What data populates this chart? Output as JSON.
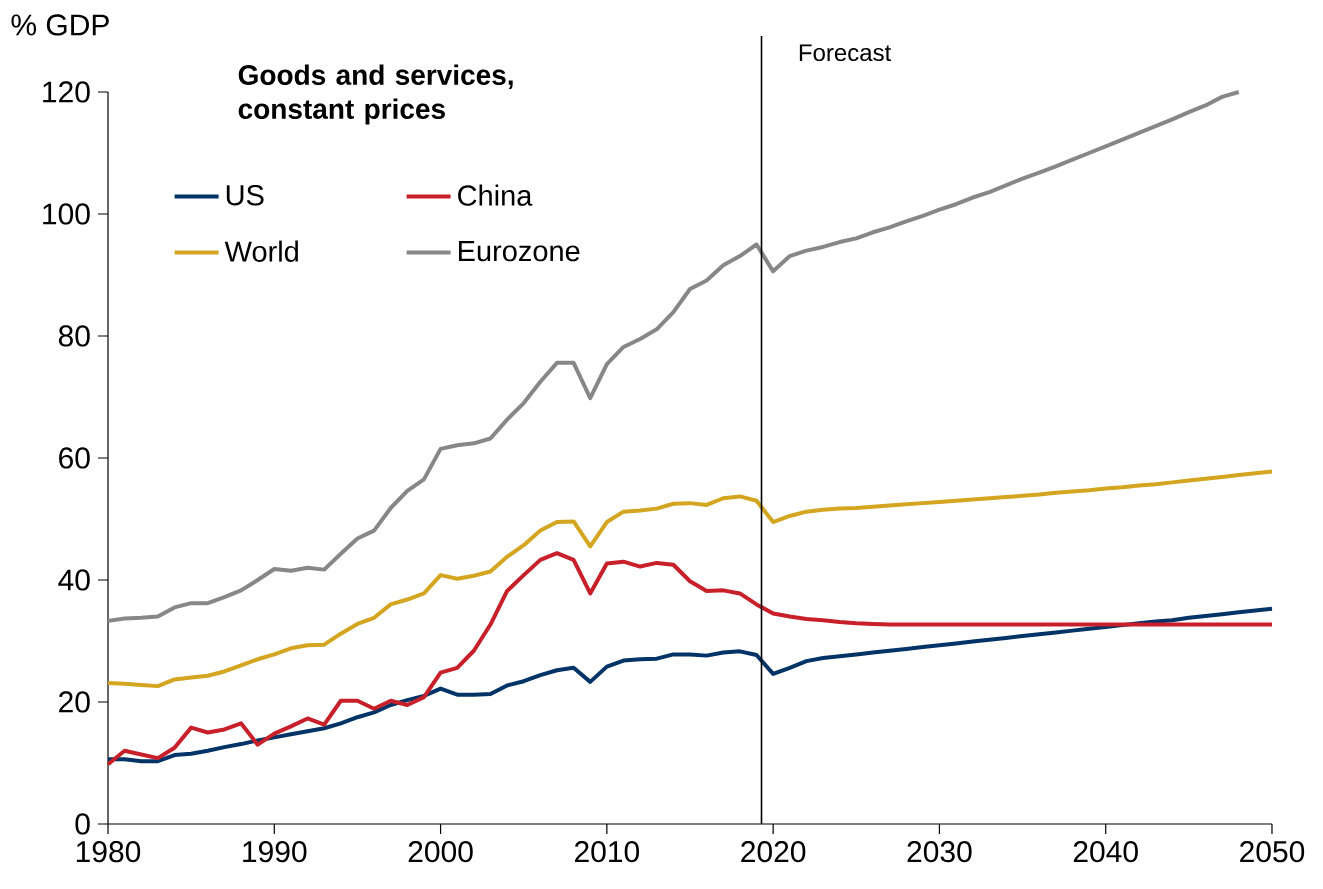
{
  "chart_data": {
    "type": "line",
    "title": "Goods and services, constant prices",
    "ylabel": "% GDP",
    "x": [
      1980,
      1981,
      1982,
      1983,
      1984,
      1985,
      1986,
      1987,
      1988,
      1989,
      1990,
      1991,
      1992,
      1993,
      1994,
      1995,
      1996,
      1997,
      1998,
      1999,
      2000,
      2001,
      2002,
      2003,
      2004,
      2005,
      2006,
      2007,
      2008,
      2009,
      2010,
      2011,
      2012,
      2013,
      2014,
      2015,
      2016,
      2017,
      2018,
      2019,
      2020,
      2021,
      2022,
      2023,
      2024,
      2025,
      2026,
      2027,
      2028,
      2029,
      2030,
      2031,
      2032,
      2033,
      2034,
      2035,
      2036,
      2037,
      2038,
      2039,
      2040,
      2041,
      2042,
      2043,
      2044,
      2045,
      2046,
      2047,
      2048,
      2049,
      2050
    ],
    "series": [
      {
        "name": "US",
        "color": "#003366",
        "values": [
          10.6,
          10.6,
          10.3,
          10.3,
          11.3,
          11.5,
          12.0,
          12.6,
          13.1,
          13.7,
          14.2,
          14.7,
          15.2,
          15.7,
          16.5,
          17.5,
          18.3,
          19.5,
          20.3,
          21.0,
          22.2,
          21.2,
          21.2,
          21.3,
          22.7,
          23.4,
          24.4,
          25.2,
          25.6,
          23.3,
          25.8,
          26.8,
          27.0,
          27.1,
          27.8,
          27.8,
          27.6,
          28.1,
          28.3,
          27.7,
          24.6,
          25.6,
          26.7,
          27.2,
          27.5,
          27.8,
          28.1,
          28.4,
          28.7,
          29.0,
          29.3,
          29.6,
          29.9,
          30.2,
          30.5,
          30.8,
          31.1,
          31.4,
          31.7,
          32.0,
          32.3,
          32.6,
          32.9,
          33.2,
          33.4,
          33.8,
          34.1,
          34.4,
          34.7,
          35.0,
          35.3
        ]
      },
      {
        "name": "China",
        "color": "#c8202a",
        "values": [
          9.8,
          12.0,
          11.4,
          10.8,
          12.5,
          15.8,
          15.0,
          15.5,
          16.5,
          13.0,
          14.8,
          16.0,
          17.3,
          16.3,
          20.2,
          20.2,
          18.9,
          20.2,
          19.5,
          20.8,
          24.8,
          25.6,
          28.4,
          32.7,
          38.2,
          40.8,
          43.3,
          44.4,
          43.3,
          37.8,
          42.7,
          43.0,
          42.2,
          42.8,
          42.5,
          39.8,
          38.2,
          38.3,
          37.8,
          36.0,
          34.5,
          34.0,
          33.6,
          33.4,
          33.1,
          32.9,
          32.8,
          32.7,
          32.7,
          32.7,
          32.7,
          32.7,
          32.7,
          32.7,
          32.7,
          32.7,
          32.7,
          32.7,
          32.7,
          32.7,
          32.7,
          32.7,
          32.7,
          32.7,
          32.7,
          32.7,
          32.7,
          32.7,
          32.7,
          32.7,
          32.7
        ]
      },
      {
        "name": "World",
        "color": "#d4a520",
        "values": [
          23.1,
          23.0,
          22.8,
          22.6,
          23.7,
          24.0,
          24.3,
          25.0,
          26.0,
          27.0,
          27.8,
          28.8,
          29.3,
          29.4,
          31.2,
          32.8,
          33.8,
          36.0,
          36.8,
          37.8,
          40.8,
          40.2,
          40.7,
          41.4,
          43.8,
          45.7,
          48.1,
          49.5,
          49.6,
          45.5,
          49.5,
          51.2,
          51.4,
          51.7,
          52.5,
          52.6,
          52.3,
          53.4,
          53.7,
          53.0,
          49.5,
          50.5,
          51.2,
          51.5,
          51.7,
          51.8,
          52.0,
          52.2,
          52.4,
          52.6,
          52.8,
          53.0,
          53.2,
          53.4,
          53.6,
          53.8,
          54.0,
          54.3,
          54.5,
          54.7,
          55.0,
          55.2,
          55.5,
          55.7,
          56.0,
          56.3,
          56.6,
          56.9,
          57.2,
          57.5,
          57.8
        ]
      },
      {
        "name": "Eurozone",
        "color": "#878787",
        "values": [
          33.3,
          33.7,
          33.8,
          34.0,
          35.5,
          36.2,
          36.2,
          37.2,
          38.3,
          40.0,
          41.8,
          41.5,
          42.0,
          41.7,
          44.3,
          46.8,
          48.1,
          51.8,
          54.6,
          56.5,
          61.5,
          62.1,
          62.4,
          63.2,
          66.3,
          69.0,
          72.5,
          75.6,
          75.6,
          69.8,
          75.4,
          78.2,
          79.5,
          81.1,
          83.9,
          87.7,
          89.1,
          91.6,
          93.1,
          95.0,
          90.6,
          93.1,
          94.0,
          94.6,
          95.4,
          96.0,
          97.0,
          97.8,
          98.8,
          99.7,
          100.7,
          101.6,
          102.7,
          103.6,
          104.7,
          105.8,
          106.8,
          107.8,
          108.9,
          110.0,
          111.1,
          112.2,
          113.3,
          114.4,
          115.5,
          116.7,
          117.8,
          119.2,
          120.0,
          null,
          null
        ]
      }
    ],
    "xlim": [
      1980,
      2050
    ],
    "xticks": [
      1980,
      1990,
      2000,
      2010,
      2020,
      2030,
      2040,
      2050
    ],
    "ylim": [
      0,
      120
    ],
    "yticks": [
      0,
      20,
      40,
      60,
      80,
      100,
      120
    ],
    "ref_lines": [
      {
        "axis": "x",
        "value": 2019.3,
        "label": "Forecast",
        "color": "#000000"
      }
    ],
    "grid": false,
    "legend": "top left"
  }
}
